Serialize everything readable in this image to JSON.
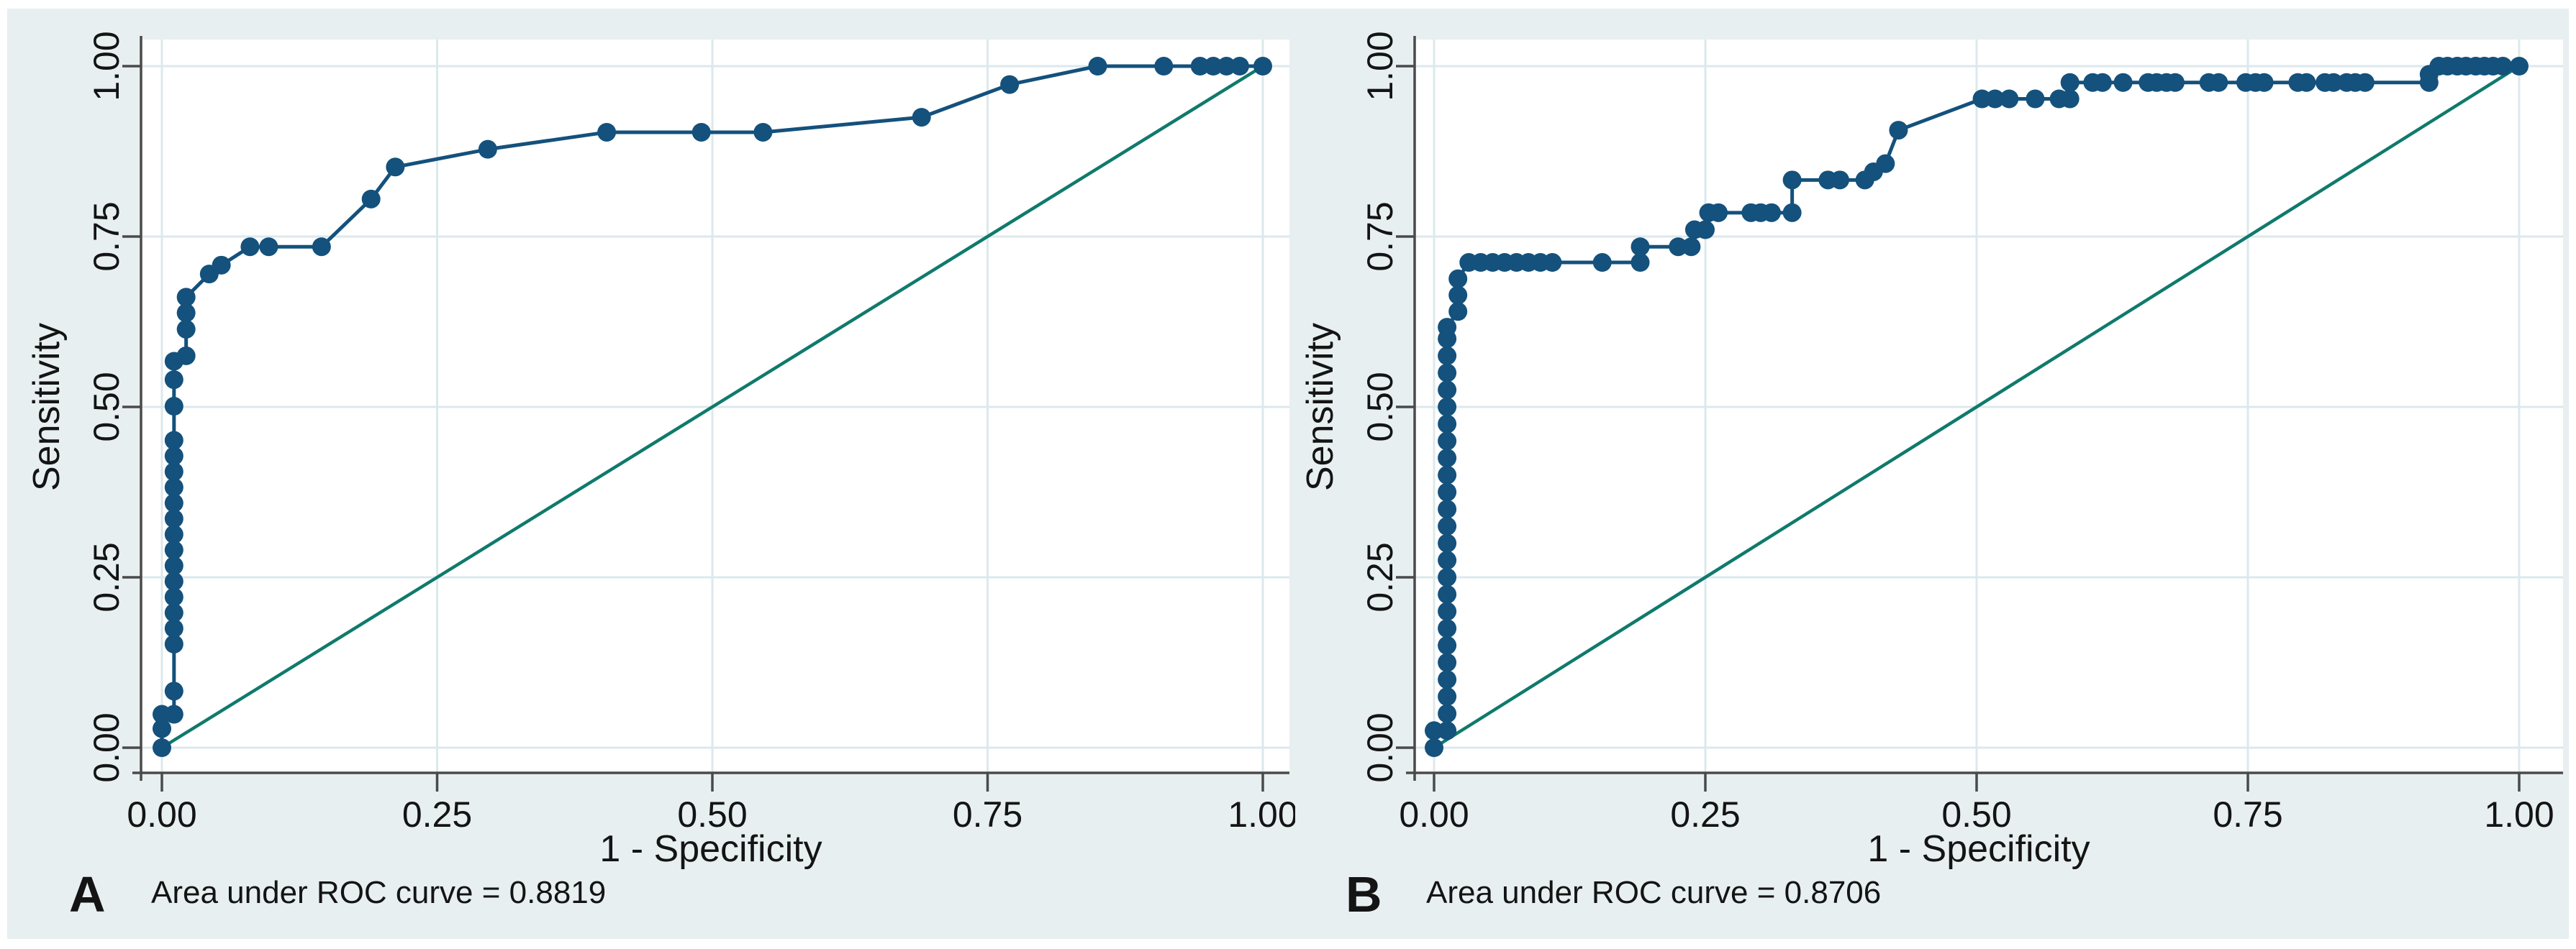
{
  "colors": {
    "figure_background": "#e7eff1",
    "plot_background": "#ffffff",
    "roc_curve": "#14517c",
    "reference_line": "#0f7a6c",
    "axis": "#4a4a4a",
    "gridline": "#dce9ec",
    "text": "#141414"
  },
  "chart_data": [
    {
      "type": "line",
      "panel_label": "A",
      "annotation": "Area under ROC curve = 0.8819",
      "auc": 0.8819,
      "xlabel": "1 - Specificity",
      "ylabel": "Sensitivity",
      "xlim": [
        0,
        1
      ],
      "ylim": [
        0,
        1
      ],
      "grid": true,
      "legend_position": "none",
      "x_ticks": [
        {
          "value": 0.0,
          "label": "0.00"
        },
        {
          "value": 0.25,
          "label": "0.25"
        },
        {
          "value": 0.5,
          "label": "0.50"
        },
        {
          "value": 0.75,
          "label": "0.75"
        },
        {
          "value": 1.0,
          "label": "1.00"
        }
      ],
      "y_ticks": [
        {
          "value": 0.0,
          "label": "0.00"
        },
        {
          "value": 0.25,
          "label": "0.25"
        },
        {
          "value": 0.5,
          "label": "0.50"
        },
        {
          "value": 0.75,
          "label": "0.75"
        },
        {
          "value": 1.0,
          "label": "1.00"
        }
      ],
      "series": [
        {
          "name": "roc-curve",
          "markers": true,
          "points": [
            [
              0,
              0
            ],
            [
              0,
              0.028
            ],
            [
              0,
              0.049
            ],
            [
              0.011,
              0.049
            ],
            [
              0.011,
              0.083
            ],
            [
              0.011,
              0.152
            ],
            [
              0.011,
              0.175
            ],
            [
              0.011,
              0.198
            ],
            [
              0.011,
              0.221
            ],
            [
              0.011,
              0.244
            ],
            [
              0.011,
              0.267
            ],
            [
              0.011,
              0.29
            ],
            [
              0.011,
              0.313
            ],
            [
              0.011,
              0.336
            ],
            [
              0.011,
              0.359
            ],
            [
              0.011,
              0.382
            ],
            [
              0.011,
              0.405
            ],
            [
              0.011,
              0.428
            ],
            [
              0.011,
              0.451
            ],
            [
              0.011,
              0.501
            ],
            [
              0.011,
              0.54
            ],
            [
              0.011,
              0.567
            ],
            [
              0.022,
              0.575
            ],
            [
              0.022,
              0.614
            ],
            [
              0.022,
              0.638
            ],
            [
              0.022,
              0.661
            ],
            [
              0.043,
              0.695
            ],
            [
              0.054,
              0.708
            ],
            [
              0.08,
              0.735
            ],
            [
              0.097,
              0.735
            ],
            [
              0.145,
              0.735
            ],
            [
              0.19,
              0.805
            ],
            [
              0.212,
              0.852
            ],
            [
              0.296,
              0.878
            ],
            [
              0.404,
              0.903
            ],
            [
              0.49,
              0.903
            ],
            [
              0.546,
              0.903
            ],
            [
              0.69,
              0.925
            ],
            [
              0.77,
              0.973
            ],
            [
              0.85,
              1
            ],
            [
              0.91,
              1
            ],
            [
              0.943,
              1
            ],
            [
              0.955,
              1
            ],
            [
              0.967,
              1
            ],
            [
              0.979,
              1
            ],
            [
              1,
              1
            ]
          ]
        },
        {
          "name": "reference-diagonal",
          "markers": false,
          "points": [
            [
              0,
              0
            ],
            [
              1,
              1
            ]
          ]
        }
      ]
    },
    {
      "type": "line",
      "panel_label": "B",
      "annotation": "Area under ROC curve = 0.8706",
      "auc": 0.8706,
      "xlabel": "1 - Specificity",
      "ylabel": "Sensitivity",
      "xlim": [
        0,
        1
      ],
      "ylim": [
        0,
        1
      ],
      "grid": true,
      "legend_position": "none",
      "x_ticks": [
        {
          "value": 0.0,
          "label": "0.00"
        },
        {
          "value": 0.25,
          "label": "0.25"
        },
        {
          "value": 0.5,
          "label": "0.50"
        },
        {
          "value": 0.75,
          "label": "0.75"
        },
        {
          "value": 1.0,
          "label": "1.00"
        }
      ],
      "y_ticks": [
        {
          "value": 0.0,
          "label": "0.00"
        },
        {
          "value": 0.25,
          "label": "0.25"
        },
        {
          "value": 0.5,
          "label": "0.50"
        },
        {
          "value": 0.75,
          "label": "0.75"
        },
        {
          "value": 1.0,
          "label": "1.00"
        }
      ],
      "series": [
        {
          "name": "roc-curve",
          "markers": true,
          "points": [
            [
              0,
              0
            ],
            [
              0,
              0.025
            ],
            [
              0.012,
              0.025
            ],
            [
              0.012,
              0.05
            ],
            [
              0.012,
              0.075
            ],
            [
              0.012,
              0.1
            ],
            [
              0.012,
              0.125
            ],
            [
              0.012,
              0.15
            ],
            [
              0.012,
              0.175
            ],
            [
              0.012,
              0.2
            ],
            [
              0.012,
              0.225
            ],
            [
              0.012,
              0.25
            ],
            [
              0.012,
              0.275
            ],
            [
              0.012,
              0.3
            ],
            [
              0.012,
              0.325
            ],
            [
              0.012,
              0.35
            ],
            [
              0.012,
              0.375
            ],
            [
              0.012,
              0.4
            ],
            [
              0.012,
              0.425
            ],
            [
              0.012,
              0.45
            ],
            [
              0.012,
              0.475
            ],
            [
              0.012,
              0.5
            ],
            [
              0.012,
              0.525
            ],
            [
              0.012,
              0.55
            ],
            [
              0.012,
              0.575
            ],
            [
              0.012,
              0.6
            ],
            [
              0.012,
              0.617
            ],
            [
              0.022,
              0.64
            ],
            [
              0.022,
              0.664
            ],
            [
              0.022,
              0.688
            ],
            [
              0.032,
              0.712
            ],
            [
              0.043,
              0.712
            ],
            [
              0.054,
              0.712
            ],
            [
              0.065,
              0.712
            ],
            [
              0.076,
              0.712
            ],
            [
              0.087,
              0.712
            ],
            [
              0.098,
              0.712
            ],
            [
              0.109,
              0.712
            ],
            [
              0.155,
              0.712
            ],
            [
              0.19,
              0.712
            ],
            [
              0.19,
              0.735
            ],
            [
              0.225,
              0.735
            ],
            [
              0.237,
              0.735
            ],
            [
              0.24,
              0.76
            ],
            [
              0.25,
              0.76
            ],
            [
              0.253,
              0.785
            ],
            [
              0.262,
              0.785
            ],
            [
              0.292,
              0.785
            ],
            [
              0.301,
              0.785
            ],
            [
              0.311,
              0.785
            ],
            [
              0.33,
              0.785
            ],
            [
              0.33,
              0.833
            ],
            [
              0.363,
              0.833
            ],
            [
              0.374,
              0.833
            ],
            [
              0.397,
              0.833
            ],
            [
              0.405,
              0.845
            ],
            [
              0.416,
              0.857
            ],
            [
              0.428,
              0.906
            ],
            [
              0.505,
              0.952
            ],
            [
              0.517,
              0.952
            ],
            [
              0.53,
              0.952
            ],
            [
              0.554,
              0.952
            ],
            [
              0.576,
              0.952
            ],
            [
              0.586,
              0.952
            ],
            [
              0.586,
              0.976
            ],
            [
              0.607,
              0.976
            ],
            [
              0.616,
              0.976
            ],
            [
              0.635,
              0.976
            ],
            [
              0.658,
              0.976
            ],
            [
              0.666,
              0.976
            ],
            [
              0.675,
              0.976
            ],
            [
              0.683,
              0.976
            ],
            [
              0.714,
              0.976
            ],
            [
              0.723,
              0.976
            ],
            [
              0.748,
              0.976
            ],
            [
              0.757,
              0.976
            ],
            [
              0.765,
              0.976
            ],
            [
              0.796,
              0.976
            ],
            [
              0.804,
              0.976
            ],
            [
              0.821,
              0.976
            ],
            [
              0.829,
              0.976
            ],
            [
              0.841,
              0.976
            ],
            [
              0.849,
              0.976
            ],
            [
              0.858,
              0.976
            ],
            [
              0.917,
              0.976
            ],
            [
              0.917,
              0.988
            ],
            [
              0.926,
              1
            ],
            [
              0.934,
              1
            ],
            [
              0.943,
              1
            ],
            [
              0.951,
              1
            ],
            [
              0.96,
              1
            ],
            [
              0.968,
              1
            ],
            [
              0.976,
              1
            ],
            [
              0.985,
              1
            ],
            [
              1,
              1
            ]
          ]
        },
        {
          "name": "reference-diagonal",
          "markers": false,
          "points": [
            [
              0,
              0
            ],
            [
              1,
              1
            ]
          ]
        }
      ]
    }
  ]
}
